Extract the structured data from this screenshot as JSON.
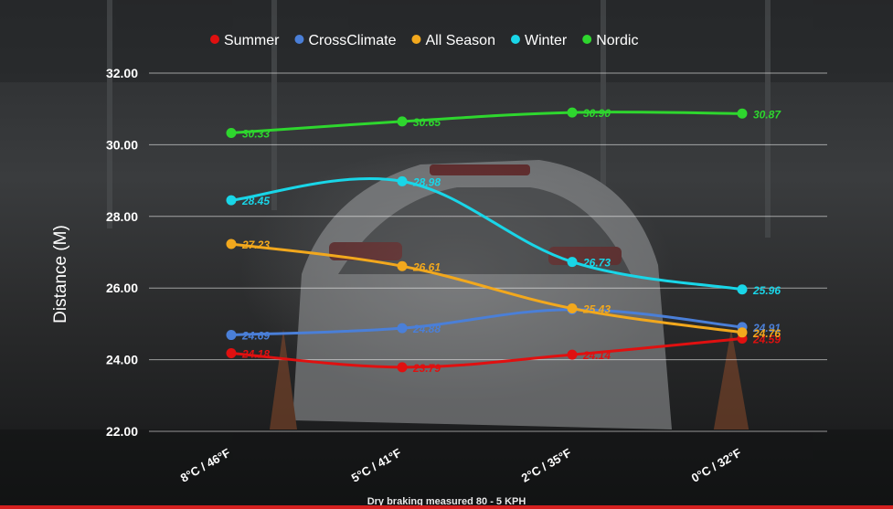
{
  "chart_data": {
    "type": "line",
    "title": "",
    "ylabel": "Distance (M)",
    "xlabel": "",
    "categories": [
      "8°C / 46°F",
      "5°C / 41°F",
      "2°C / 35°F",
      "0°C / 32°F"
    ],
    "ylim": [
      22,
      32
    ],
    "yticks": [
      "22.00",
      "24.00",
      "26.00",
      "28.00",
      "30.00",
      "32.00"
    ],
    "grid": true,
    "legend_position": "top",
    "series": [
      {
        "name": "Summer",
        "color": "#e01010",
        "values": [
          24.18,
          23.79,
          24.14,
          24.59
        ],
        "labels": [
          "24.18",
          "23.79",
          "24.14",
          "24.59"
        ]
      },
      {
        "name": "CrossClimate",
        "color": "#4a7fd8",
        "values": [
          24.69,
          24.88,
          25.4,
          24.91
        ],
        "labels": [
          "24.69",
          "24.88",
          "",
          "24.91"
        ]
      },
      {
        "name": "All Season",
        "color": "#f2a81d",
        "values": [
          27.23,
          26.61,
          25.43,
          24.76
        ],
        "labels": [
          "27.23",
          "26.61",
          "25.43",
          "24.76"
        ]
      },
      {
        "name": "Winter",
        "color": "#19d6e8",
        "values": [
          28.45,
          28.98,
          26.73,
          25.96
        ],
        "labels": [
          "28.45",
          "28.98",
          "26.73",
          "25.96"
        ]
      },
      {
        "name": "Nordic",
        "color": "#2ed62e",
        "values": [
          30.33,
          30.65,
          30.9,
          30.87
        ],
        "labels": [
          "30.33",
          "30.65",
          "30.90",
          "30.87"
        ]
      }
    ]
  },
  "footnote": "Dry braking measured 80 - 5 KPH"
}
